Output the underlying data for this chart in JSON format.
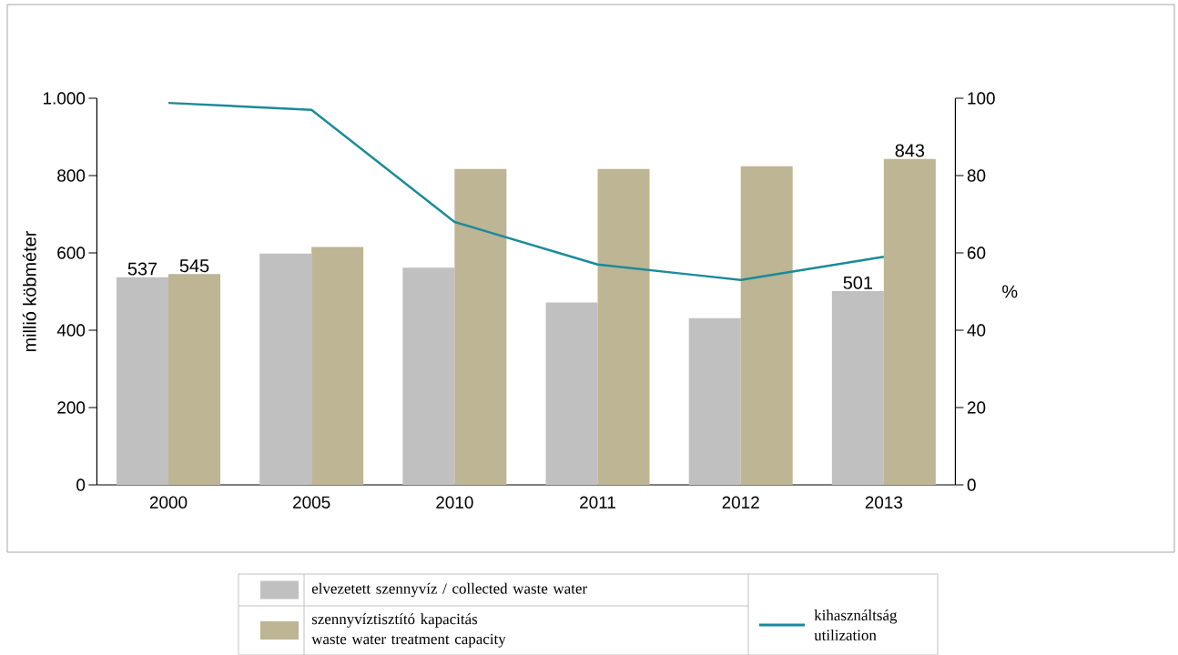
{
  "chart_data": {
    "type": "bar",
    "ylabel": "millió köbméter",
    "y2label": "%",
    "categories": [
      "2000",
      "2005",
      "2010",
      "2011",
      "2012",
      "2013"
    ],
    "series": [
      {
        "name": "elvezetett szennyvíz / collected waste water",
        "color": "#c0c0c0",
        "values": [
          537,
          598,
          562,
          472,
          431,
          501
        ],
        "value_labels": [
          "537",
          null,
          null,
          null,
          null,
          "501"
        ]
      },
      {
        "name": "szennyvíztisztító kapacitás waste water treatment capacity",
        "color": "#bdb593",
        "values": [
          545,
          615,
          817,
          817,
          824,
          843
        ],
        "value_labels": [
          "545",
          null,
          null,
          null,
          null,
          "843"
        ]
      },
      {
        "name": "kihasználtság utilization",
        "type": "line",
        "axis": "y2",
        "color": "#1b8a9a",
        "values": [
          98.8,
          97,
          68,
          57,
          53,
          59
        ]
      }
    ],
    "ylim": [
      0,
      1000
    ],
    "yticks": [
      0,
      200,
      400,
      600,
      800,
      {
        "value": 1000,
        "label": "1.000"
      }
    ],
    "y2lim": [
      0,
      100
    ],
    "y2ticks": [
      0,
      20,
      40,
      60,
      80,
      100
    ],
    "legend": "bottom"
  }
}
